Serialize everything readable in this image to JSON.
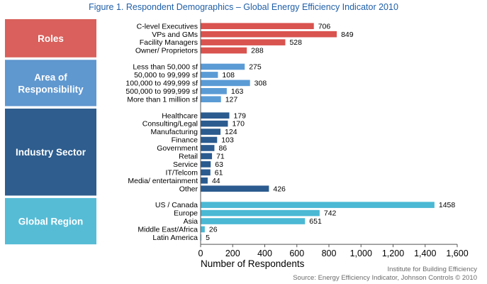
{
  "chart_data": {
    "type": "bar",
    "orientation": "horizontal",
    "title": "Figure 1. Respondent Demographics – Global Energy Efficiency Indicator 2010",
    "xlabel": "Number of Respondents",
    "xlim": [
      0,
      1600
    ],
    "xticks": [
      "0",
      "200",
      "400",
      "600",
      "800",
      "1,000",
      "1,200",
      "1,400",
      "1,600"
    ],
    "groups": [
      {
        "name": "Roles",
        "color": "#d9534f",
        "box_color": "#d9605c",
        "categories": [
          "C-level Executives",
          "VPs and GMs",
          "Facility Managers",
          "Owner/ Proprietors"
        ],
        "values": [
          706,
          849,
          528,
          288
        ]
      },
      {
        "name": "Area of Responsibility",
        "color": "#5b9bd5",
        "box_color": "#5f97cf",
        "categories": [
          "Less than 50,000 sf",
          "50,000 to 99,999 sf",
          "100,000 to 499,999 sf",
          "500,000 to 999,999 sf",
          "More than 1 million sf"
        ],
        "values": [
          275,
          108,
          308,
          163,
          127
        ]
      },
      {
        "name": "Industry Sector",
        "color": "#2b5b8f",
        "box_color": "#2e5d8e",
        "categories": [
          "Healthcare",
          "Consulting/Legal",
          "Manufacturing",
          "Finance",
          "Government",
          "Retail",
          "Service",
          "IT/Telcom",
          "Media/ entertainment",
          "Other"
        ],
        "values": [
          179,
          170,
          124,
          103,
          86,
          71,
          63,
          61,
          44,
          426
        ]
      },
      {
        "name": "Global Region",
        "color": "#4bb8d4",
        "box_color": "#56bcd6",
        "categories": [
          "US / Canada",
          "Europe",
          "Asia",
          "Middle East/Africa",
          "Latin America"
        ],
        "values": [
          1458,
          742,
          651,
          26,
          5
        ]
      }
    ]
  },
  "footer": {
    "credit_line1": "Institute for Building Efficiency",
    "credit_line2": "Source: Energy Efficiency Indicator, Johnson Controls © 2010"
  }
}
